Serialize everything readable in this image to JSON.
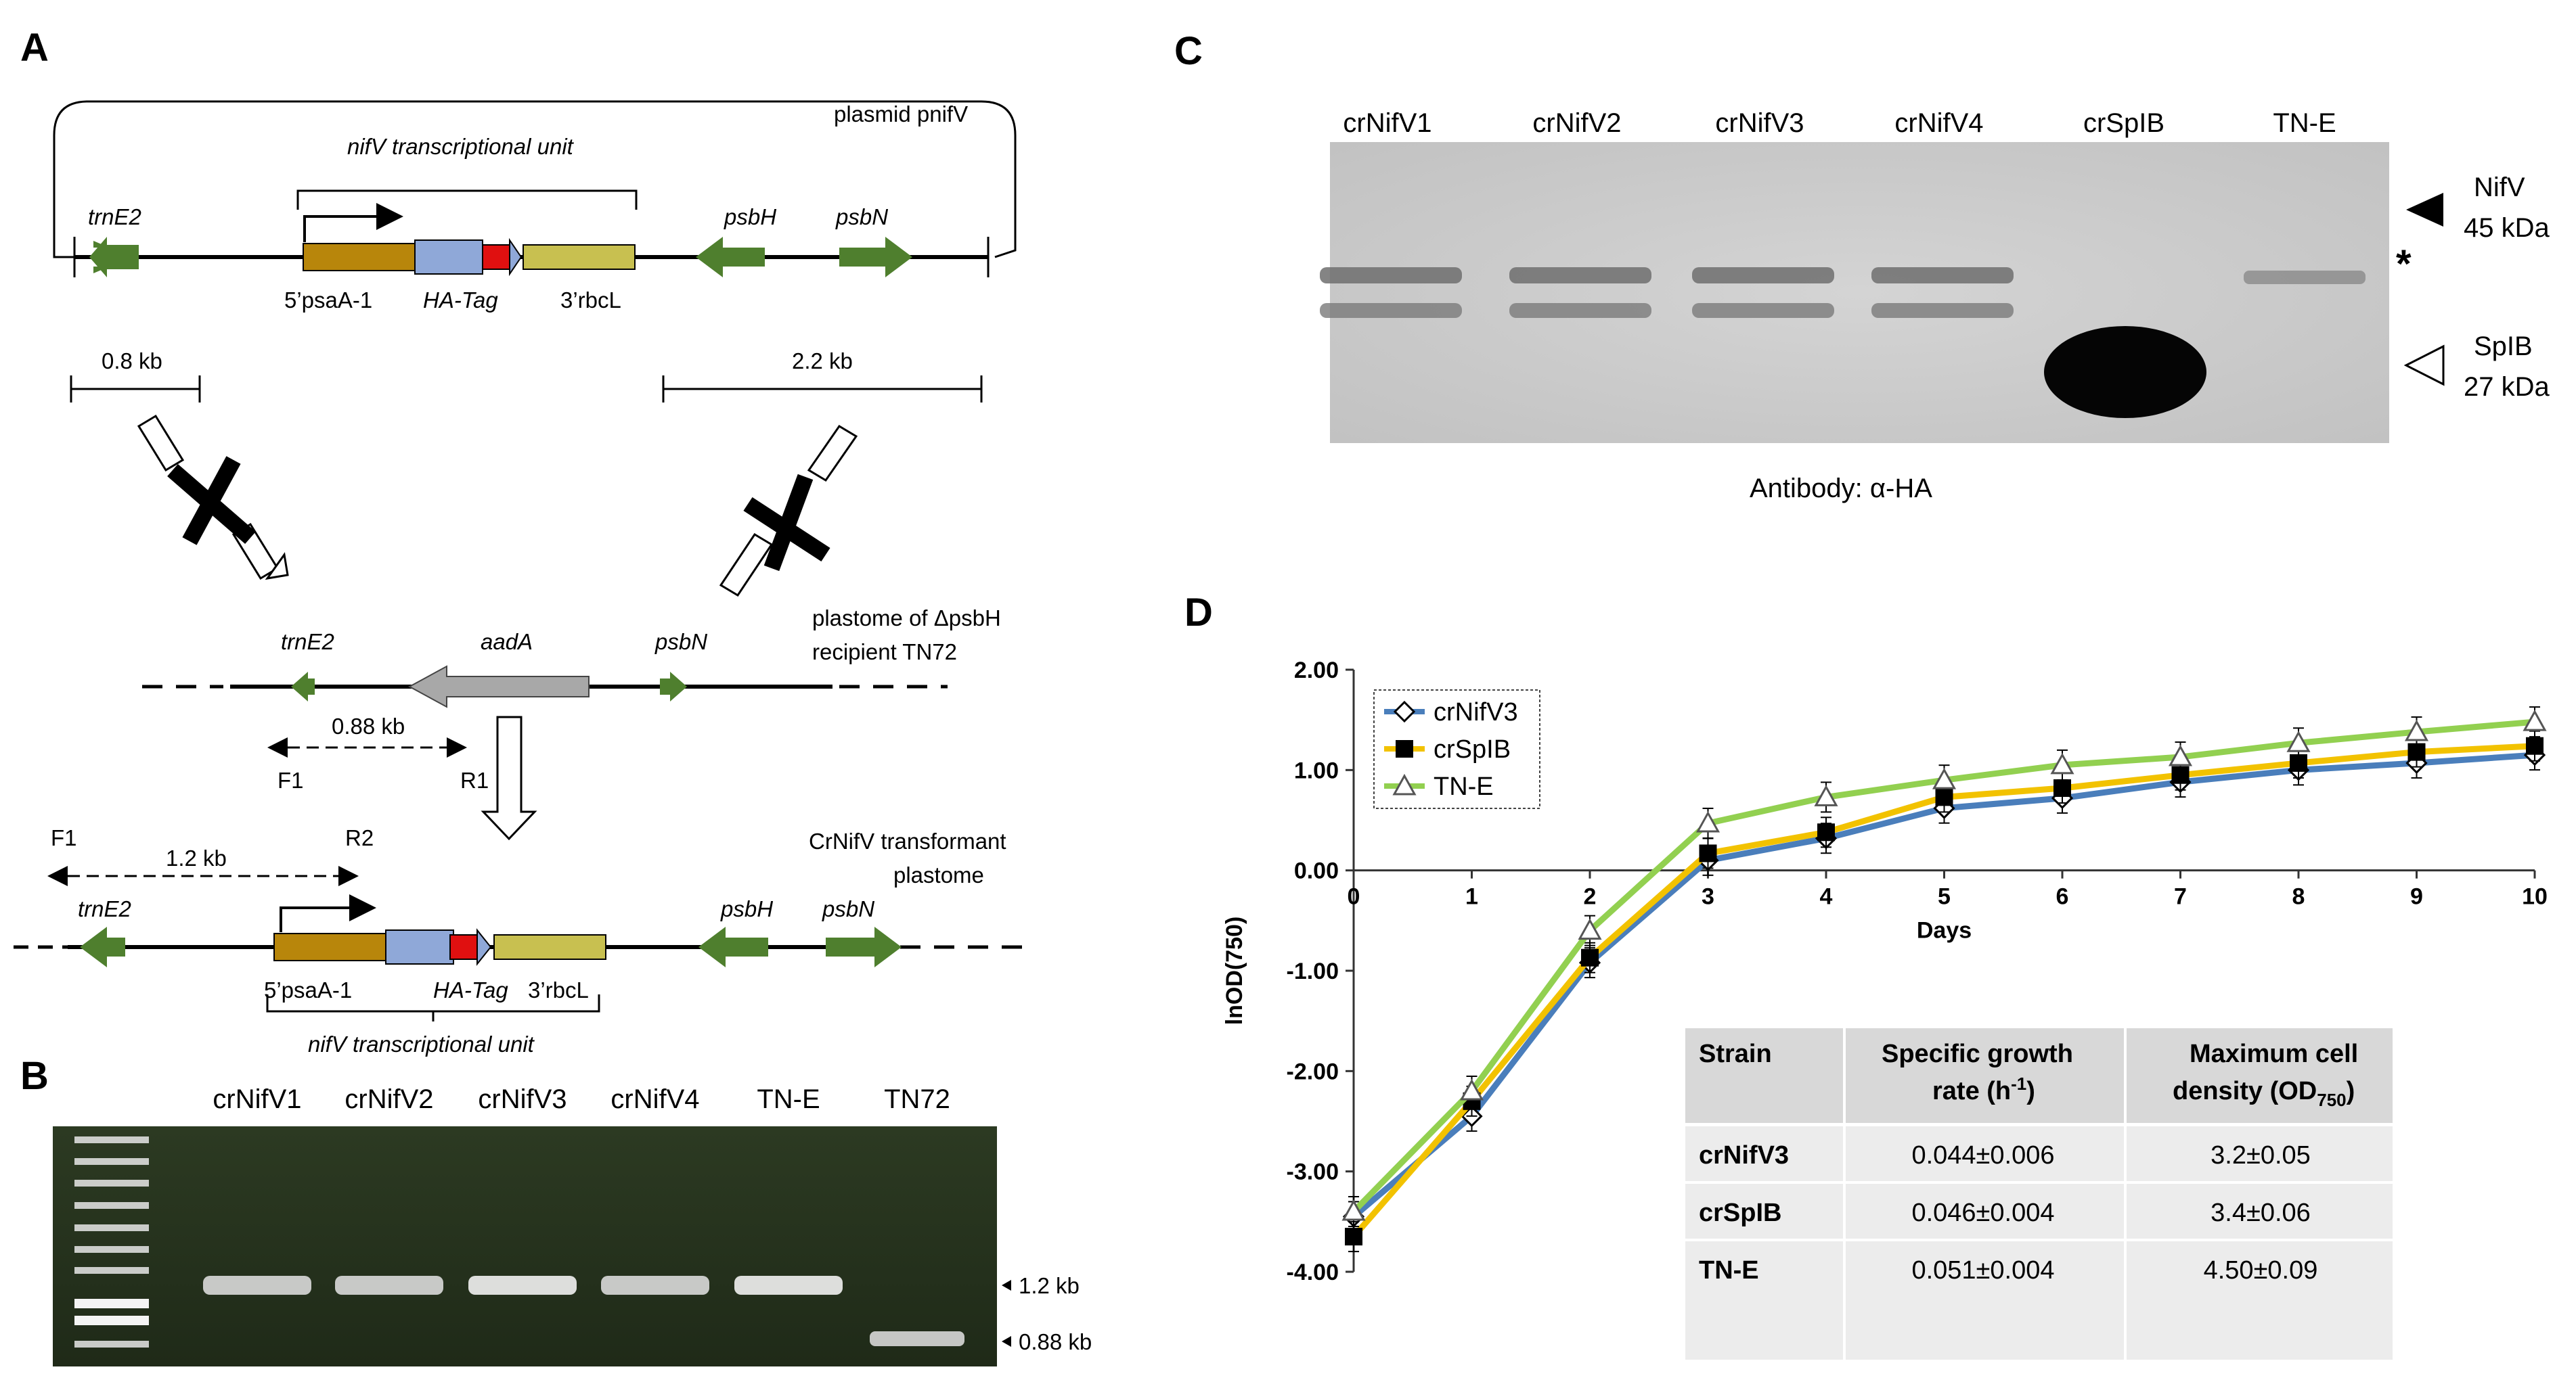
{
  "panels": {
    "a": "A",
    "b": "B",
    "c": "C",
    "d": "D"
  },
  "panel_a": {
    "plasmid_label": "plasmid pnifV",
    "nifv_unit_label": "nifV transcriptional unit",
    "genes_top": {
      "trnE2": "trnE2",
      "psaA": "5’psaA-1",
      "hatag": "HA-Tag",
      "rbcL": "3’rbcL",
      "psbH": "psbH",
      "psbN": "psbN"
    },
    "dist_left": "0.8 kb",
    "dist_right": "2.2 kb",
    "recipient_label_1": "plastome of ΔpsbH",
    "recipient_label_2": "recipient TN72",
    "genes_mid": {
      "trnE2": "trnE2",
      "aadA": "aadA",
      "psbN": "psbN"
    },
    "primer_f1": "F1",
    "primer_r1": "R1",
    "primer_r2": "R2",
    "dist_088": "0.88 kb",
    "dist_12": "1.2 kb",
    "transformant_label_1": "CrNifV transformant",
    "transformant_label_2": "plastome",
    "genes_bottom": {
      "trnE2": "trnE2",
      "psaA": "5’psaA-1",
      "hatag": "HA-Tag",
      "rbcL": "3’rbcL",
      "psbH": "psbH",
      "psbN": "psbN"
    },
    "nifv_unit_label_bottom": "nifV transcriptional unit"
  },
  "panel_b": {
    "lanes": [
      "crNifV1",
      "crNifV2",
      "crNifV3",
      "crNifV4",
      "TN-E",
      "TN72"
    ],
    "size_labels": [
      "1.2 kb",
      "0.88 kb"
    ]
  },
  "panel_c": {
    "lanes": [
      "crNifV1",
      "crNifV2",
      "crNifV3",
      "crNifV4",
      "crSpIB",
      "TN-E"
    ],
    "nifv_label": "NifV",
    "nifv_size": "45 kDa",
    "star": "*",
    "spib_label": "SpIB",
    "spib_size": "27 kDa",
    "antibody": "Antibody: α-HA"
  },
  "panel_d": {
    "table": {
      "headers": [
        "Strain",
        "Specific growth rate (h-1)",
        "Maximum cell density (OD750)"
      ],
      "rows": [
        [
          "crNifV3",
          "0.044±0.006",
          "3.2±0.05"
        ],
        [
          "crSpIB",
          "0.046±0.004",
          "3.4±0.06"
        ],
        [
          "TN-E",
          "0.051±0.004",
          "4.50±0.09"
        ]
      ]
    }
  },
  "chart_data": {
    "type": "line",
    "xlabel": "Days",
    "ylabel": "lnOD(750)",
    "x": [
      0,
      1,
      2,
      3,
      4,
      5,
      6,
      7,
      8,
      9,
      10
    ],
    "xlim": [
      0,
      10
    ],
    "ylim": [
      -4,
      2
    ],
    "yticks": [
      "2.00",
      "1.00",
      "0.00",
      "-1.00",
      "-2.00",
      "-3.00",
      "-4.00"
    ],
    "legend_position": "top-left",
    "series": [
      {
        "name": "crNifV3",
        "color": "#4a7ebb",
        "marker": "diamond-open",
        "values": [
          -3.45,
          -2.45,
          -0.92,
          0.1,
          0.32,
          0.62,
          0.72,
          0.88,
          1.0,
          1.07,
          1.15
        ]
      },
      {
        "name": "crSpIB",
        "color": "#f2c200",
        "marker": "square-filled",
        "values": [
          -3.65,
          -2.3,
          -0.87,
          0.17,
          0.38,
          0.73,
          0.82,
          0.95,
          1.07,
          1.18,
          1.24
        ]
      },
      {
        "name": "TN-E",
        "color": "#92d050",
        "marker": "triangle-open",
        "values": [
          -3.4,
          -2.2,
          -0.6,
          0.47,
          0.73,
          0.9,
          1.05,
          1.13,
          1.27,
          1.38,
          1.48
        ]
      }
    ]
  }
}
